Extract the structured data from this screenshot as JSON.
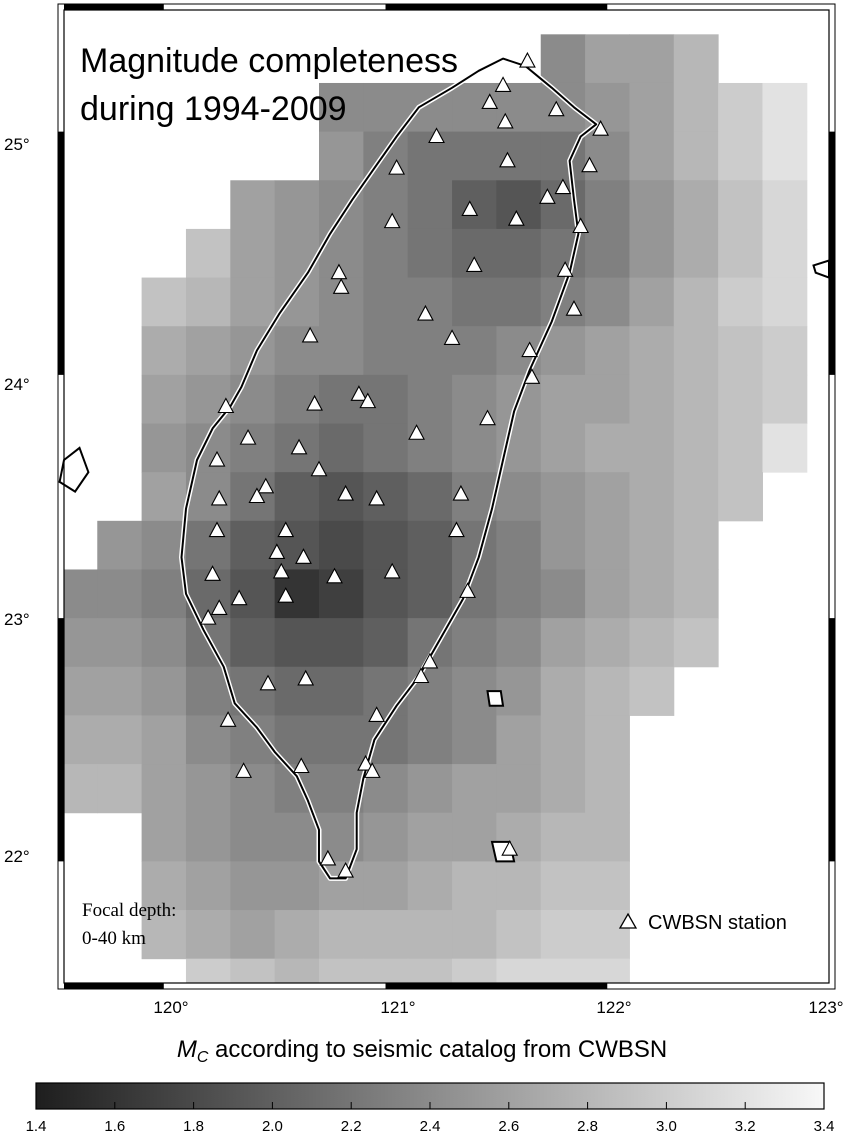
{
  "title_lines": [
    "Magnitude completeness",
    "during 1994-2009"
  ],
  "depth_note_lines": [
    "Focal depth:",
    "0-40 km"
  ],
  "legend": {
    "station_label": "CWBSN station",
    "station_symbol": "triangle-icon"
  },
  "axes": {
    "lon_ticks": [
      "120°",
      "121°",
      "122°",
      "123°"
    ],
    "lat_ticks": [
      "25°",
      "24°",
      "23°",
      "22°"
    ],
    "lon_range": [
      119.55,
      123.0
    ],
    "lat_range": [
      21.5,
      25.5
    ]
  },
  "colorbar": {
    "title_symbol": "M",
    "title_subscript": "C",
    "title_text": " according to seismic catalog from CWBSN",
    "range": [
      1.4,
      3.4
    ],
    "tick_labels": [
      "1.4",
      "1.6",
      "1.8",
      "2.0",
      "2.2",
      "2.4",
      "2.6",
      "2.8",
      "3.0",
      "3.2",
      "3.4"
    ],
    "color_low": "#1e1e1e",
    "color_high": "#f8f8f8"
  },
  "grid": {
    "cell_deg": 0.2,
    "lon0": 119.5,
    "lat0": 21.4,
    "rows_north_to_south": [
      [
        null,
        null,
        null,
        null,
        null,
        null,
        null,
        null,
        null,
        null,
        null,
        null,
        null,
        null,
        null,
        null,
        null
      ],
      [
        null,
        null,
        null,
        null,
        null,
        null,
        null,
        null,
        null,
        null,
        null,
        2.4,
        2.6,
        2.6,
        2.8,
        null,
        null
      ],
      [
        null,
        null,
        null,
        null,
        null,
        null,
        2.4,
        2.4,
        2.4,
        2.4,
        2.4,
        2.4,
        2.5,
        2.6,
        2.8,
        3.0,
        3.2
      ],
      [
        null,
        null,
        null,
        null,
        null,
        null,
        2.5,
        2.3,
        2.2,
        2.2,
        2.2,
        2.2,
        2.4,
        2.6,
        2.8,
        3.0,
        3.2
      ],
      [
        null,
        null,
        null,
        null,
        2.6,
        2.5,
        2.4,
        2.3,
        2.2,
        2.0,
        1.9,
        2.1,
        2.3,
        2.5,
        2.7,
        2.9,
        3.1
      ],
      [
        null,
        null,
        null,
        2.9,
        2.6,
        2.5,
        2.4,
        2.3,
        2.2,
        2.1,
        2.1,
        2.2,
        2.3,
        2.5,
        2.7,
        2.9,
        3.1
      ],
      [
        null,
        null,
        2.9,
        2.8,
        2.6,
        2.5,
        2.4,
        2.3,
        2.3,
        2.2,
        2.2,
        2.3,
        2.4,
        2.6,
        2.8,
        3.0,
        3.1
      ],
      [
        null,
        null,
        2.7,
        2.6,
        2.5,
        2.4,
        2.4,
        2.3,
        2.3,
        2.3,
        2.4,
        2.5,
        2.6,
        2.7,
        2.8,
        2.9,
        3.0
      ],
      [
        null,
        null,
        2.6,
        2.5,
        2.4,
        2.3,
        2.2,
        2.2,
        2.3,
        2.4,
        2.5,
        2.6,
        2.6,
        2.7,
        2.8,
        2.9,
        3.0
      ],
      [
        null,
        null,
        2.5,
        2.4,
        2.3,
        2.2,
        2.1,
        2.2,
        2.3,
        2.4,
        2.5,
        2.6,
        2.7,
        2.7,
        2.8,
        2.9,
        3.2
      ],
      [
        null,
        null,
        2.6,
        2.4,
        2.2,
        2.0,
        1.9,
        2.0,
        2.1,
        2.3,
        2.4,
        2.5,
        2.6,
        2.7,
        2.8,
        2.9,
        null
      ],
      [
        null,
        2.5,
        2.4,
        2.2,
        2.0,
        1.9,
        1.8,
        1.9,
        2.0,
        2.2,
        2.3,
        2.5,
        2.6,
        2.7,
        2.8,
        null,
        null
      ],
      [
        2.4,
        2.4,
        2.3,
        2.1,
        1.9,
        1.6,
        1.7,
        1.9,
        2.0,
        2.2,
        2.3,
        2.4,
        2.6,
        2.7,
        2.8,
        null,
        null
      ],
      [
        2.5,
        2.5,
        2.4,
        2.2,
        2.0,
        1.9,
        1.9,
        2.0,
        2.2,
        2.3,
        2.4,
        2.6,
        2.7,
        2.8,
        2.9,
        null,
        null
      ],
      [
        2.6,
        2.6,
        2.5,
        2.3,
        2.2,
        2.1,
        2.1,
        2.2,
        2.3,
        2.4,
        2.5,
        2.7,
        2.8,
        2.9,
        null,
        null,
        null
      ],
      [
        2.7,
        2.7,
        2.6,
        2.4,
        2.3,
        2.2,
        2.2,
        2.2,
        2.3,
        2.4,
        2.6,
        2.7,
        2.8,
        null,
        null,
        null,
        null
      ],
      [
        2.8,
        2.8,
        2.6,
        2.5,
        2.4,
        2.3,
        2.3,
        2.4,
        2.5,
        2.6,
        2.6,
        2.7,
        2.8,
        null,
        null,
        null,
        null
      ],
      [
        null,
        null,
        2.6,
        2.5,
        2.4,
        2.4,
        2.4,
        2.5,
        2.6,
        2.6,
        2.7,
        2.8,
        2.8,
        null,
        null,
        null,
        null
      ],
      [
        null,
        null,
        2.7,
        2.6,
        2.5,
        2.5,
        2.6,
        2.6,
        2.7,
        2.8,
        2.8,
        2.9,
        2.9,
        null,
        null,
        null,
        null
      ],
      [
        null,
        null,
        2.8,
        2.7,
        2.6,
        2.7,
        2.8,
        2.8,
        2.8,
        2.8,
        2.9,
        3.0,
        3.0,
        null,
        null,
        null,
        null
      ],
      [
        null,
        null,
        null,
        3.0,
        2.9,
        2.8,
        2.9,
        2.9,
        2.9,
        3.0,
        3.1,
        3.1,
        3.1,
        null,
        null,
        null,
        null
      ]
    ]
  },
  "coastline": {
    "taiwan": [
      [
        121.53,
        25.3
      ],
      [
        121.63,
        25.27
      ],
      [
        121.75,
        25.18
      ],
      [
        121.85,
        25.1
      ],
      [
        121.95,
        25.03
      ],
      [
        121.88,
        24.98
      ],
      [
        121.83,
        24.88
      ],
      [
        121.85,
        24.72
      ],
      [
        121.87,
        24.58
      ],
      [
        121.83,
        24.42
      ],
      [
        121.75,
        24.22
      ],
      [
        121.65,
        24.02
      ],
      [
        121.58,
        23.85
      ],
      [
        121.53,
        23.65
      ],
      [
        121.48,
        23.45
      ],
      [
        121.42,
        23.25
      ],
      [
        121.35,
        23.08
      ],
      [
        121.25,
        22.92
      ],
      [
        121.15,
        22.76
      ],
      [
        121.05,
        22.64
      ],
      [
        120.95,
        22.5
      ],
      [
        120.9,
        22.34
      ],
      [
        120.87,
        22.2
      ],
      [
        120.87,
        22.05
      ],
      [
        120.82,
        21.93
      ],
      [
        120.75,
        21.93
      ],
      [
        120.7,
        22.0
      ],
      [
        120.7,
        22.13
      ],
      [
        120.65,
        22.25
      ],
      [
        120.6,
        22.35
      ],
      [
        120.5,
        22.45
      ],
      [
        120.42,
        22.55
      ],
      [
        120.32,
        22.65
      ],
      [
        120.27,
        22.8
      ],
      [
        120.18,
        22.95
      ],
      [
        120.1,
        23.1
      ],
      [
        120.08,
        23.25
      ],
      [
        120.1,
        23.45
      ],
      [
        120.15,
        23.65
      ],
      [
        120.22,
        23.78
      ],
      [
        120.3,
        23.87
      ],
      [
        120.35,
        23.95
      ],
      [
        120.42,
        24.1
      ],
      [
        120.52,
        24.25
      ],
      [
        120.65,
        24.42
      ],
      [
        120.75,
        24.58
      ],
      [
        120.85,
        24.72
      ],
      [
        120.95,
        24.85
      ],
      [
        121.05,
        24.98
      ],
      [
        121.15,
        25.1
      ],
      [
        121.3,
        25.18
      ],
      [
        121.42,
        25.25
      ],
      [
        121.53,
        25.3
      ]
    ],
    "islands": [
      [
        [
          119.55,
          23.65
        ],
        [
          119.62,
          23.7
        ],
        [
          119.66,
          23.6
        ],
        [
          119.6,
          23.52
        ],
        [
          119.53,
          23.56
        ],
        [
          119.55,
          23.65
        ]
      ],
      [
        [
          121.46,
          22.7
        ],
        [
          121.52,
          22.7
        ],
        [
          121.53,
          22.64
        ],
        [
          121.47,
          22.64
        ],
        [
          121.46,
          22.7
        ]
      ],
      [
        [
          121.48,
          22.08
        ],
        [
          121.56,
          22.08
        ],
        [
          121.58,
          22.0
        ],
        [
          121.5,
          22.0
        ],
        [
          121.48,
          22.08
        ]
      ],
      [
        [
          122.93,
          24.45
        ],
        [
          123.0,
          24.47
        ],
        [
          123.0,
          24.4
        ],
        [
          122.94,
          24.42
        ],
        [
          122.93,
          24.45
        ]
      ]
    ]
  },
  "stations": [
    [
      121.64,
      25.29
    ],
    [
      121.53,
      25.19
    ],
    [
      121.47,
      25.12
    ],
    [
      121.54,
      25.04
    ],
    [
      121.77,
      25.09
    ],
    [
      121.23,
      24.98
    ],
    [
      121.97,
      25.01
    ],
    [
      121.55,
      24.88
    ],
    [
      121.92,
      24.86
    ],
    [
      121.05,
      24.85
    ],
    [
      121.8,
      24.77
    ],
    [
      121.73,
      24.73
    ],
    [
      121.38,
      24.68
    ],
    [
      121.59,
      24.64
    ],
    [
      121.88,
      24.61
    ],
    [
      121.03,
      24.63
    ],
    [
      121.4,
      24.45
    ],
    [
      121.81,
      24.43
    ],
    [
      120.79,
      24.42
    ],
    [
      120.8,
      24.36
    ],
    [
      121.85,
      24.27
    ],
    [
      121.18,
      24.25
    ],
    [
      121.3,
      24.15
    ],
    [
      120.66,
      24.16
    ],
    [
      121.65,
      24.1
    ],
    [
      121.66,
      23.99
    ],
    [
      120.28,
      23.87
    ],
    [
      120.68,
      23.88
    ],
    [
      120.88,
      23.92
    ],
    [
      120.92,
      23.89
    ],
    [
      121.46,
      23.82
    ],
    [
      121.14,
      23.76
    ],
    [
      120.38,
      23.74
    ],
    [
      120.61,
      23.7
    ],
    [
      120.24,
      23.65
    ],
    [
      120.7,
      23.61
    ],
    [
      120.46,
      23.54
    ],
    [
      120.42,
      23.5
    ],
    [
      120.82,
      23.51
    ],
    [
      120.96,
      23.49
    ],
    [
      121.34,
      23.51
    ],
    [
      120.25,
      23.49
    ],
    [
      120.24,
      23.36
    ],
    [
      120.55,
      23.36
    ],
    [
      121.32,
      23.36
    ],
    [
      120.51,
      23.27
    ],
    [
      120.63,
      23.25
    ],
    [
      120.53,
      23.19
    ],
    [
      120.22,
      23.18
    ],
    [
      120.77,
      23.17
    ],
    [
      121.03,
      23.19
    ],
    [
      120.55,
      23.09
    ],
    [
      120.34,
      23.08
    ],
    [
      121.37,
      23.11
    ],
    [
      120.25,
      23.04
    ],
    [
      120.2,
      23.0
    ],
    [
      121.2,
      22.82
    ],
    [
      120.64,
      22.75
    ],
    [
      120.47,
      22.73
    ],
    [
      121.16,
      22.76
    ],
    [
      120.29,
      22.58
    ],
    [
      120.96,
      22.6
    ],
    [
      120.91,
      22.4
    ],
    [
      120.94,
      22.37
    ],
    [
      120.36,
      22.37
    ],
    [
      120.62,
      22.39
    ],
    [
      120.74,
      22.01
    ],
    [
      120.82,
      21.96
    ],
    [
      121.56,
      22.05
    ]
  ]
}
